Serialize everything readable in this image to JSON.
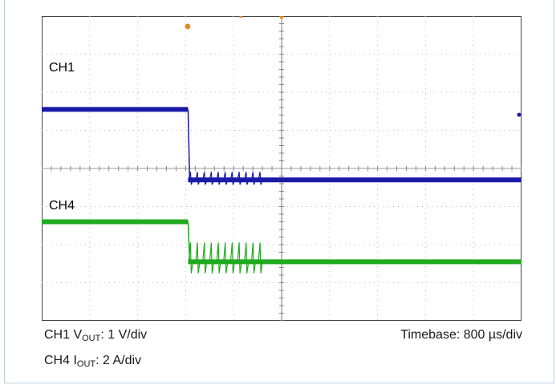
{
  "chart_data": {
    "type": "line",
    "x_divisions": 10,
    "y_divisions": 8,
    "grid": true,
    "series": [
      {
        "name": "CH1",
        "color": "#1a1aa8",
        "high_level_div": 5.55,
        "low_level_div": 3.7,
        "step_time_div": 3.05,
        "ringing_start_div": 3.1,
        "ringing_end_div": 4.55,
        "ringing_pulses": 11
      },
      {
        "name": "CH4",
        "color": "#1faa1f",
        "high_level_div": 2.6,
        "low_level_div": 1.55,
        "step_time_div": 3.05,
        "ringing_start_div": 3.1,
        "ringing_end_div": 4.55,
        "ringing_pulses": 11
      }
    ],
    "markers": {
      "trigger_color": "#e08a2a",
      "ch1_marker_color": "#1a1aa8"
    }
  },
  "labels": {
    "ch1": "CH1",
    "ch4": "CH4"
  },
  "captions": {
    "ch1_prefix": "CH1 V",
    "ch1_sub": "OUT",
    "ch1_suffix": ": 1 V/div",
    "ch4_prefix": "CH4 I",
    "ch4_sub": "OUT",
    "ch4_suffix": ": 2 A/div",
    "timebase": "Timebase: 800 µs/div"
  }
}
